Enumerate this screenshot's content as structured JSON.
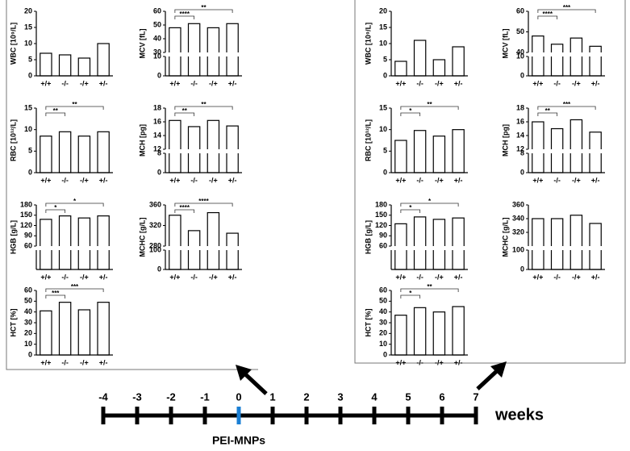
{
  "chart_data": [
    {
      "type": "bar",
      "ylabel": "WBC [10⁹/L]",
      "categories": [
        "+/+",
        "-/-",
        "-/+",
        "+/-"
      ],
      "values": [
        7,
        6.5,
        5.5,
        10
      ],
      "ylim": [
        0,
        20
      ],
      "yticks": [
        0,
        5,
        10,
        15,
        20
      ],
      "significance": []
    },
    {
      "type": "bar",
      "ylabel": "MCV [fL]",
      "categories": [
        "+/+",
        "-/-",
        "-/+",
        "+/-"
      ],
      "values": [
        48,
        51,
        48,
        51
      ],
      "ylim": [
        0,
        60
      ],
      "ybreak": [
        10,
        30
      ],
      "yticks": [
        0,
        10,
        30,
        40,
        50,
        60
      ],
      "significance": [
        {
          "from": "+/+",
          "to": "-/-",
          "label": "****"
        },
        {
          "from": "+/+",
          "to": "+/-",
          "label": "**"
        }
      ]
    },
    {
      "type": "bar",
      "ylabel": "RBC [10¹²/L]",
      "categories": [
        "+/+",
        "-/-",
        "-/+",
        "+/-"
      ],
      "values": [
        8.5,
        9.5,
        8.5,
        9.5
      ],
      "ylim": [
        0,
        15
      ],
      "yticks": [
        0,
        5,
        10,
        15
      ],
      "significance": [
        {
          "from": "+/+",
          "to": "-/-",
          "label": "**"
        },
        {
          "from": "+/+",
          "to": "+/-",
          "label": "**"
        }
      ]
    },
    {
      "type": "bar",
      "ylabel": "MCH [pg]",
      "categories": [
        "+/+",
        "-/-",
        "-/+",
        "+/-"
      ],
      "values": [
        16.2,
        15.3,
        16.2,
        15.4
      ],
      "ylim": [
        0,
        18
      ],
      "ybreak": [
        8,
        12
      ],
      "yticks": [
        0,
        8,
        12,
        14,
        16,
        18
      ],
      "significance": [
        {
          "from": "+/+",
          "to": "-/-",
          "label": "**"
        },
        {
          "from": "+/+",
          "to": "+/-",
          "label": "**"
        }
      ]
    },
    {
      "type": "bar",
      "ylabel": "HGB [g/L]",
      "categories": [
        "+/+",
        "-/-",
        "-/+",
        "+/-"
      ],
      "values": [
        138,
        148,
        142,
        148
      ],
      "ylim": [
        0,
        180
      ],
      "ybreak": [
        30,
        60
      ],
      "yticks": [
        60,
        90,
        120,
        150,
        180
      ],
      "significance": [
        {
          "from": "+/+",
          "to": "-/-",
          "label": "*"
        },
        {
          "from": "+/+",
          "to": "+/-",
          "label": "*"
        }
      ]
    },
    {
      "type": "bar",
      "ylabel": "MCHC [g/L]",
      "categories": [
        "+/+",
        "-/-",
        "-/+",
        "+/-"
      ],
      "values": [
        340,
        310,
        345,
        305
      ],
      "ylim": [
        0,
        360
      ],
      "ybreak": [
        100,
        280
      ],
      "yticks": [
        0,
        100,
        280,
        320,
        360
      ],
      "significance": [
        {
          "from": "+/+",
          "to": "-/-",
          "label": "****"
        },
        {
          "from": "+/+",
          "to": "+/-",
          "label": "****"
        }
      ]
    },
    {
      "type": "bar",
      "ylabel": "HCT [%]",
      "categories": [
        "+/+",
        "-/-",
        "-/+",
        "+/-"
      ],
      "values": [
        41,
        49,
        42,
        49
      ],
      "ylim": [
        0,
        60
      ],
      "yticks": [
        0,
        10,
        20,
        30,
        40,
        50,
        60
      ],
      "significance": [
        {
          "from": "+/+",
          "to": "-/-",
          "label": "***"
        },
        {
          "from": "+/+",
          "to": "+/-",
          "label": "***"
        }
      ]
    },
    {
      "type": "bar",
      "ylabel": "WBC [10⁹/L]",
      "categories": [
        "+/+",
        "-/-",
        "-/+",
        "+/-"
      ],
      "values": [
        4.5,
        11,
        5,
        9
      ],
      "ylim": [
        0,
        20
      ],
      "yticks": [
        0,
        5,
        10,
        15,
        20
      ],
      "significance": []
    },
    {
      "type": "bar",
      "ylabel": "MCV [fL]",
      "categories": [
        "+/+",
        "-/-",
        "-/+",
        "+/-"
      ],
      "values": [
        48,
        44,
        47,
        43
      ],
      "ylim": [
        0,
        60
      ],
      "ybreak": [
        10,
        40
      ],
      "yticks": [
        0,
        10,
        40,
        50,
        60
      ],
      "significance": [
        {
          "from": "+/+",
          "to": "-/-",
          "label": "****"
        },
        {
          "from": "+/+",
          "to": "+/-",
          "label": "***"
        }
      ]
    },
    {
      "type": "bar",
      "ylabel": "RBC [10¹²/L]",
      "categories": [
        "+/+",
        "-/-",
        "-/+",
        "+/-"
      ],
      "values": [
        7.5,
        9.8,
        8.5,
        10
      ],
      "ylim": [
        0,
        15
      ],
      "yticks": [
        0,
        5,
        10,
        15
      ],
      "significance": [
        {
          "from": "+/+",
          "to": "-/-",
          "label": "*"
        },
        {
          "from": "+/+",
          "to": "+/-",
          "label": "**"
        }
      ]
    },
    {
      "type": "bar",
      "ylabel": "MCH [pg]",
      "categories": [
        "+/+",
        "-/-",
        "-/+",
        "+/-"
      ],
      "values": [
        16,
        15,
        16.3,
        14.5
      ],
      "ylim": [
        0,
        18
      ],
      "ybreak": [
        8,
        12
      ],
      "yticks": [
        0,
        8,
        12,
        14,
        16,
        18
      ],
      "significance": [
        {
          "from": "+/+",
          "to": "-/-",
          "label": "**"
        },
        {
          "from": "+/+",
          "to": "+/-",
          "label": "***"
        }
      ]
    },
    {
      "type": "bar",
      "ylabel": "HGB [g/L]",
      "categories": [
        "+/+",
        "-/-",
        "-/+",
        "+/-"
      ],
      "values": [
        125,
        145,
        138,
        142
      ],
      "ylim": [
        0,
        180
      ],
      "ybreak": [
        30,
        60
      ],
      "yticks": [
        60,
        90,
        120,
        150,
        180
      ],
      "significance": [
        {
          "from": "+/+",
          "to": "-/-",
          "label": "*"
        },
        {
          "from": "+/+",
          "to": "+/-",
          "label": "*"
        }
      ]
    },
    {
      "type": "bar",
      "ylabel": "MCHC [g/L]",
      "categories": [
        "+/+",
        "-/-",
        "-/+",
        "+/-"
      ],
      "values": [
        340,
        340,
        345,
        333
      ],
      "ylim": [
        0,
        360
      ],
      "ybreak": [
        100,
        300
      ],
      "yticks": [
        0,
        100,
        320,
        340,
        360
      ],
      "significance": []
    },
    {
      "type": "bar",
      "ylabel": "HCT [%]",
      "categories": [
        "+/+",
        "-/-",
        "-/+",
        "+/-"
      ],
      "values": [
        37,
        44,
        40,
        45
      ],
      "ylim": [
        0,
        60
      ],
      "yticks": [
        0,
        10,
        20,
        30,
        40,
        50,
        60
      ],
      "significance": [
        {
          "from": "+/+",
          "to": "-/-",
          "label": "*"
        },
        {
          "from": "+/+",
          "to": "+/-",
          "label": "**"
        }
      ]
    }
  ],
  "timeline": {
    "ticks": [
      -4,
      -3,
      -2,
      -1,
      0,
      1,
      2,
      3,
      4,
      5,
      6,
      7
    ],
    "unit": "weeks",
    "marker": {
      "at": 0,
      "label": "PEI-MNPs",
      "color": "#1a7fd4"
    }
  }
}
